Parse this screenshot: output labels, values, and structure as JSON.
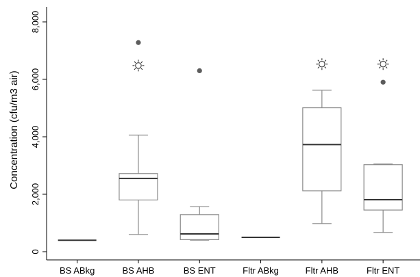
{
  "chart_data": {
    "type": "box",
    "title": "",
    "xlabel": "",
    "ylabel": "Concentration (cfu/m3 air)",
    "ylim": [
      -300,
      8600
    ],
    "yticks": [
      0,
      2000,
      4000,
      6000,
      8000
    ],
    "ytick_labels": [
      "0",
      "2,000",
      "4,000",
      "6,000",
      "8,000"
    ],
    "grid": false,
    "categories": [
      "BS ABkg",
      "BS AHB",
      "BS ENT",
      "Fltr ABkg",
      "Fltr AHB",
      "Fltr ENT"
    ],
    "boxes": [
      {
        "category": "BS ABkg",
        "min": 400,
        "q1": 400,
        "median": 400,
        "q3": 400,
        "max": 400,
        "outliers": [],
        "markers": []
      },
      {
        "category": "BS AHB",
        "min": 600,
        "q1": 1800,
        "median": 2550,
        "q3": 2720,
        "max": 4060,
        "outliers": [
          7280
        ],
        "markers": [
          6480
        ]
      },
      {
        "category": "BS ENT",
        "min": 400,
        "q1": 420,
        "median": 620,
        "q3": 1290,
        "max": 1570,
        "outliers": [
          6300
        ],
        "markers": []
      },
      {
        "category": "Fltr ABkg",
        "min": 500,
        "q1": 500,
        "median": 500,
        "q3": 500,
        "max": 500,
        "outliers": [],
        "markers": []
      },
      {
        "category": "Fltr AHB",
        "min": 980,
        "q1": 2120,
        "median": 3730,
        "q3": 5010,
        "max": 5620,
        "outliers": [],
        "markers": [
          6530
        ]
      },
      {
        "category": "Fltr ENT",
        "min": 670,
        "q1": 1450,
        "median": 1810,
        "q3": 3030,
        "max": 3050,
        "outliers": [
          5900
        ],
        "markers": [
          6530
        ]
      }
    ],
    "colors": {
      "box": "#8a8a8a",
      "median": "#333333",
      "outlier": "#5c5c5c",
      "axis": "#000000"
    }
  }
}
